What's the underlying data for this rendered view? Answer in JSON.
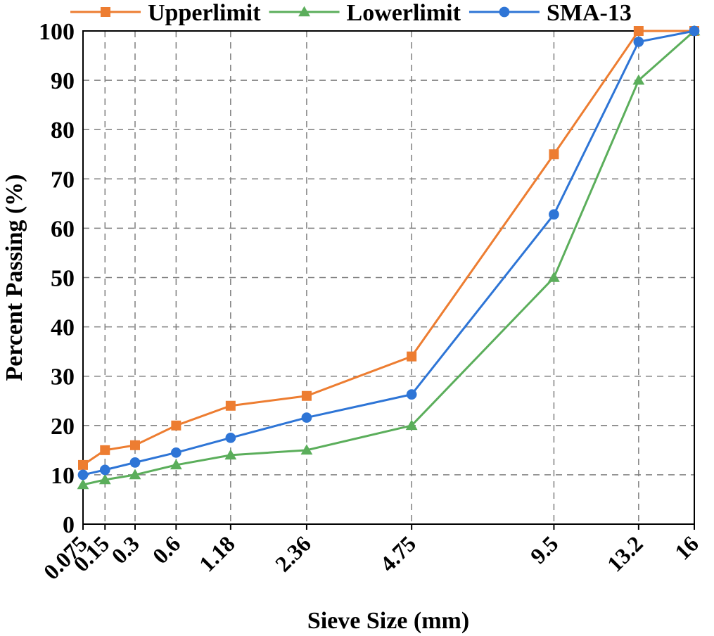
{
  "chart_data": {
    "type": "line",
    "xlabel": "Sieve Size (mm)",
    "ylabel": "Percent Passing (%)",
    "x_scale": "power-0.45",
    "ylim": [
      0,
      100
    ],
    "yticks": [
      0,
      10,
      20,
      30,
      40,
      50,
      60,
      70,
      80,
      90,
      100
    ],
    "categories": [
      "0.075",
      "0.15",
      "0.3",
      "0.6",
      "1.18",
      "2.36",
      "4.75",
      "9.5",
      "13.2",
      "16"
    ],
    "x": [
      0.075,
      0.15,
      0.3,
      0.6,
      1.18,
      2.36,
      4.75,
      9.5,
      13.2,
      16
    ],
    "grid": true,
    "legend_position": "top",
    "series": [
      {
        "name": "Upperlimit",
        "marker": "square",
        "color": "#ED7D31",
        "values": [
          12,
          15,
          16,
          20,
          24,
          26,
          34,
          75,
          100,
          100
        ]
      },
      {
        "name": "Lowerlimit",
        "marker": "triangle",
        "color": "#5BAE5B",
        "values": [
          8,
          9,
          10,
          12,
          14,
          15,
          20,
          50,
          90,
          100
        ]
      },
      {
        "name": "SMA-13",
        "marker": "circle",
        "color": "#2E75D6",
        "values": [
          10,
          11,
          12.5,
          14.5,
          17.5,
          21.6,
          26.3,
          62.8,
          97.8,
          100
        ]
      }
    ]
  }
}
